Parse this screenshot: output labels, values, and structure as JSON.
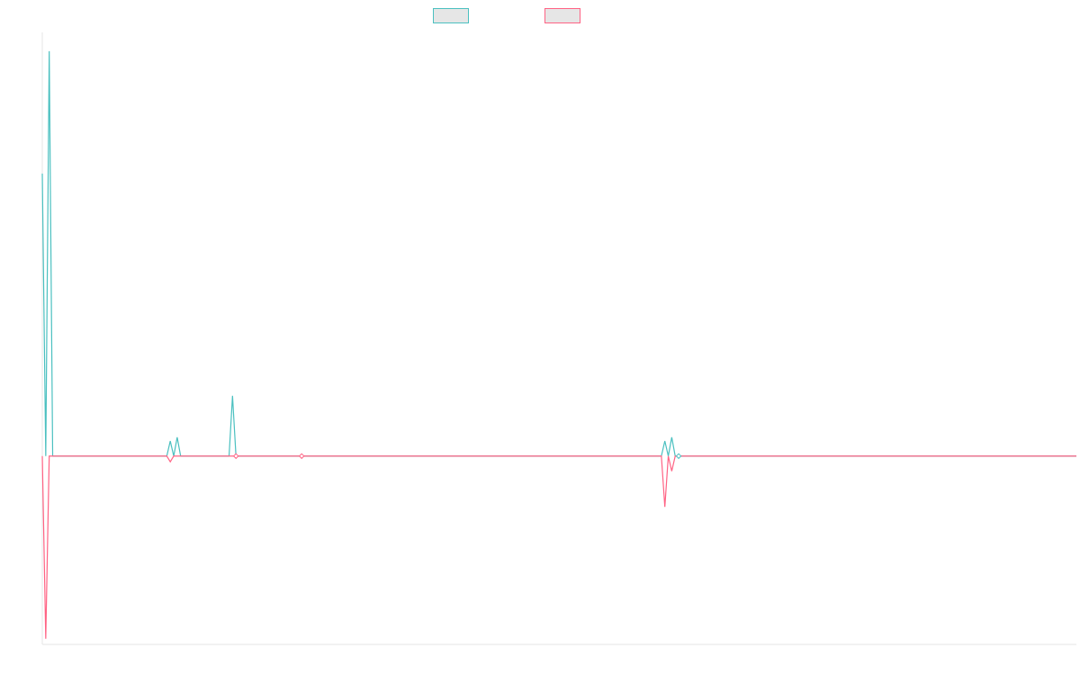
{
  "chart_data": {
    "type": "line",
    "title": "",
    "xlabel": "",
    "ylabel": "",
    "grid": false,
    "legend_position": "top-center",
    "n_points": 300,
    "ylim": [
      -100,
      225
    ],
    "baseline": 0,
    "series": [
      {
        "name": "",
        "color": "#4bc0c0",
        "fill_color": "#e6e6e6",
        "points": [
          {
            "x": 0,
            "y": 150
          },
          {
            "x": 1,
            "y": 0
          },
          {
            "x": 2,
            "y": 215
          },
          {
            "x": 3,
            "y": 0
          },
          {
            "x": 36,
            "y": 0
          },
          {
            "x": 37,
            "y": 8
          },
          {
            "x": 38,
            "y": 0
          },
          {
            "x": 39,
            "y": 10
          },
          {
            "x": 40,
            "y": 0
          },
          {
            "x": 54,
            "y": 0
          },
          {
            "x": 55,
            "y": 32
          },
          {
            "x": 56,
            "y": 0
          },
          {
            "x": 179,
            "y": 0
          },
          {
            "x": 180,
            "y": 8
          },
          {
            "x": 181,
            "y": 0
          },
          {
            "x": 182,
            "y": 10
          },
          {
            "x": 183,
            "y": 0
          },
          {
            "x": 299,
            "y": 0
          }
        ]
      },
      {
        "name": "",
        "color": "#ff6384",
        "fill_color": "#e6e6e6",
        "points": [
          {
            "x": 0,
            "y": 0
          },
          {
            "x": 1,
            "y": -97
          },
          {
            "x": 2,
            "y": 0
          },
          {
            "x": 36,
            "y": 0
          },
          {
            "x": 37,
            "y": -3
          },
          {
            "x": 38,
            "y": 0
          },
          {
            "x": 179,
            "y": 0
          },
          {
            "x": 180,
            "y": -27
          },
          {
            "x": 181,
            "y": 0
          },
          {
            "x": 182,
            "y": -8
          },
          {
            "x": 183,
            "y": 0
          },
          {
            "x": 299,
            "y": 0
          }
        ]
      }
    ],
    "point_markers": [
      {
        "x": 56,
        "y": 0,
        "color": "#ff6384"
      },
      {
        "x": 75,
        "y": 0,
        "color": "#ff6384"
      },
      {
        "x": 184,
        "y": 0,
        "color": "#4bc0c0"
      }
    ]
  }
}
